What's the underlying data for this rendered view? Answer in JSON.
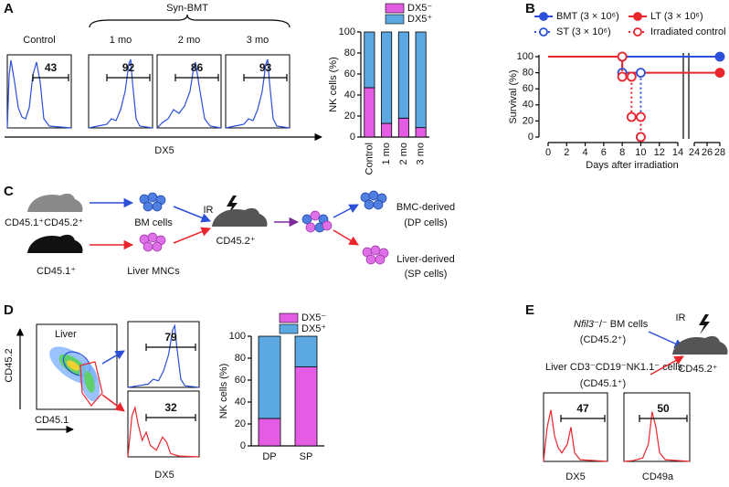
{
  "chart_data": [
    {
      "type": "bar",
      "stacked": true,
      "ylabel": "NK cells (%)",
      "categories": [
        "Control",
        "1 mo",
        "2 mo",
        "3 mo"
      ],
      "series": [
        {
          "name": "DX5⁻",
          "color": "#e45ce4",
          "values": [
            47,
            13,
            18,
            9
          ]
        },
        {
          "name": "DX5⁺",
          "color": "#5ba8e2",
          "values": [
            53,
            87,
            82,
            91
          ]
        }
      ],
      "ylim": [
        0,
        100
      ],
      "yticks": [
        0,
        20,
        40,
        60,
        80,
        100
      ]
    },
    {
      "type": "line",
      "ylabel": "Survival (%)",
      "xlabel": "Days after irradiation",
      "series": [
        {
          "name": "BMT (3 × 10⁶)",
          "color": "#2b4fd8",
          "linestyle": "solid",
          "marker": "filled",
          "x": [
            0,
            28
          ],
          "values": [
            100,
            100
          ]
        },
        {
          "name": "LT (3 × 10⁶)",
          "color": "#e8262c",
          "linestyle": "solid",
          "marker": "filled",
          "x": [
            0,
            8,
            8,
            28
          ],
          "values": [
            100,
            100,
            80,
            80
          ]
        },
        {
          "name": "ST (3 × 10⁶)",
          "color": "#2b4fd8",
          "linestyle": "dotted",
          "marker": "open",
          "x": [
            0,
            8,
            8,
            10,
            10
          ],
          "values": [
            100,
            100,
            80,
            80,
            0
          ]
        },
        {
          "name": "Irradiated control",
          "color": "#e8262c",
          "linestyle": "dotted",
          "marker": "open",
          "x": [
            0,
            8,
            8,
            9,
            9,
            10,
            10
          ],
          "values": [
            100,
            100,
            75,
            75,
            25,
            25,
            0
          ]
        }
      ],
      "xlim": [
        0,
        28
      ],
      "xbreak": [
        14,
        24
      ],
      "xticks": [
        0,
        2,
        4,
        6,
        8,
        10,
        12,
        14,
        24,
        26,
        28
      ],
      "ylim": [
        0,
        100
      ],
      "yticks": [
        0,
        20,
        40,
        60,
        80,
        100
      ]
    },
    {
      "type": "bar",
      "stacked": true,
      "ylabel": "NK cells (%)",
      "categories": [
        "DP",
        "SP"
      ],
      "series": [
        {
          "name": "DX5⁻",
          "color": "#e45ce4",
          "values": [
            25,
            72
          ]
        },
        {
          "name": "DX5⁺",
          "color": "#5ba8e2",
          "values": [
            75,
            28
          ]
        }
      ],
      "ylim": [
        0,
        100
      ],
      "yticks": [
        0,
        20,
        40,
        60,
        80,
        100
      ]
    }
  ],
  "panel_a": {
    "label": "A",
    "group": "Syn-BMT",
    "axis": "DX5",
    "histograms": [
      {
        "title": "Control",
        "gate": "43"
      },
      {
        "title": "1 mo",
        "gate": "92"
      },
      {
        "title": "2 mo",
        "gate": "86"
      },
      {
        "title": "3 mo",
        "gate": "93"
      }
    ]
  },
  "panel_b": {
    "label": "B"
  },
  "panel_c": {
    "label": "C",
    "donor1": "CD45.1⁺CD45.2⁺",
    "donor2": "CD45.1⁺",
    "cells1": "BM cells",
    "cells2": "Liver MNCs",
    "ir": "IR",
    "recipient": "CD45.2⁺",
    "out1": "BMC-derived",
    "out1_sub": "(DP cells)",
    "out2": "Liver-derived",
    "out2_sub": "(SP cells)"
  },
  "panel_d": {
    "label": "D",
    "tissue": "Liver",
    "y_axis": "CD45.2",
    "x_axis": "CD45.1",
    "gate_top": "79",
    "gate_bottom": "32",
    "hist_axis": "DX5"
  },
  "panel_e": {
    "label": "E",
    "gene": "Nfil3",
    "donor1_rest": "⁻/⁻ BM cells",
    "donor1_sub": "(CD45.2⁺)",
    "donor2": "Liver CD3⁻CD19⁻NK1.1⁻ cells",
    "donor2_sub": "(CD45.1⁺)",
    "ir": "IR",
    "recipient": "CD45.2⁺",
    "gate1": "47",
    "gate2": "50",
    "axis1": "DX5",
    "axis2": "CD49a"
  }
}
